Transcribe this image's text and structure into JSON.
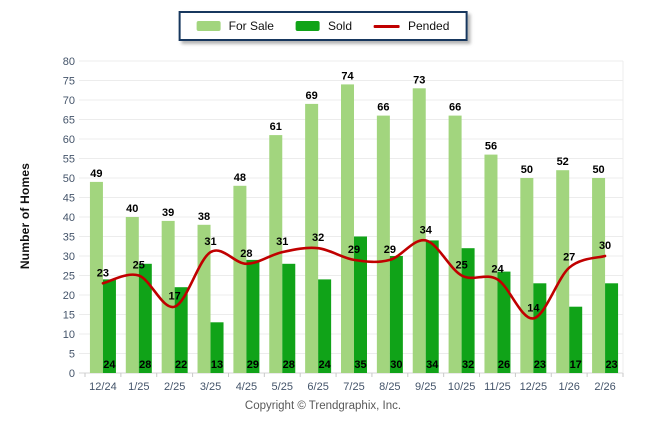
{
  "legend": {
    "items": [
      {
        "label": "For Sale",
        "swatch": "box",
        "color": "#A2D57E"
      },
      {
        "label": "Sold",
        "swatch": "box",
        "color": "#10A318"
      },
      {
        "label": "Pended",
        "swatch": "line",
        "color": "#C00000"
      }
    ]
  },
  "y_axis_title": "Number of Homes",
  "footer_text": "Copyright © Trendgraphix, Inc.",
  "chart_data": {
    "type": "bar",
    "title": "",
    "xlabel": "",
    "ylabel": "Number of Homes",
    "ylim": [
      0,
      80
    ],
    "yticks": [
      0,
      5,
      10,
      15,
      20,
      25,
      30,
      35,
      40,
      45,
      50,
      55,
      60,
      65,
      70,
      75,
      80
    ],
    "grid": "horizontal",
    "legend_position": "top-center",
    "categories": [
      "12/24",
      "1/25",
      "2/25",
      "3/25",
      "4/25",
      "5/25",
      "6/25",
      "7/25",
      "8/25",
      "9/25",
      "10/25",
      "11/25",
      "12/25",
      "1/26",
      "2/26"
    ],
    "series": [
      {
        "name": "For Sale",
        "type": "bar",
        "color": "#A2D57E",
        "values": [
          49,
          40,
          39,
          38,
          48,
          61,
          69,
          74,
          66,
          73,
          66,
          56,
          50,
          52,
          50
        ]
      },
      {
        "name": "Sold",
        "type": "bar",
        "color": "#10A318",
        "values": [
          24,
          28,
          22,
          13,
          29,
          28,
          24,
          35,
          30,
          34,
          32,
          26,
          23,
          17,
          23
        ]
      },
      {
        "name": "Pended",
        "type": "line",
        "color": "#C00000",
        "values": [
          23,
          25,
          17,
          31,
          28,
          31,
          32,
          29,
          29,
          34,
          25,
          24,
          14,
          27,
          30
        ]
      }
    ],
    "colors": {
      "grid_line": "#ECECEC",
      "axis_line": "#D6D6D6",
      "tick_mark": "#C9C9C9",
      "axis_text": "#44546A",
      "value_label": "#000000"
    }
  }
}
